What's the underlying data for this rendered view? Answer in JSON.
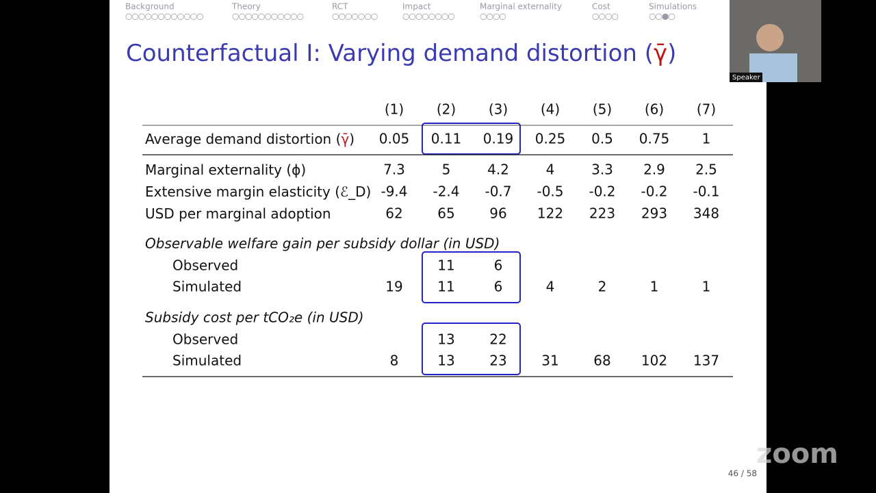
{
  "nav": [
    {
      "label": "Background",
      "dots": "○○○○○○○○○○○○"
    },
    {
      "label": "Theory",
      "dots": "○○○○○○○○○○○"
    },
    {
      "label": "RCT",
      "dots": "○○○○○○○"
    },
    {
      "label": "Impact",
      "dots": "○○○○○○○○"
    },
    {
      "label": "Marginal externality",
      "dots": "○○○○"
    },
    {
      "label": "Cost",
      "dots": "○○○○"
    },
    {
      "label": "Simulations",
      "dots": "○○●○"
    }
  ],
  "title": [
    "Counterfactual I: Varying demand distortion (",
    "γ̄",
    ")"
  ],
  "table": {
    "columns": [
      "(1)",
      "(2)",
      "(3)",
      "(4)",
      "(5)",
      "(6)",
      "(7)"
    ],
    "rows": [
      {
        "label": [
          "Average demand distortion (",
          "γ̄",
          ")"
        ],
        "cells": [
          "0.05",
          "0.11",
          "0.19",
          "0.25",
          "0.5",
          "0.75",
          "1"
        ]
      },
      {
        "label": [
          "Marginal externality (ϕ)"
        ],
        "cells": [
          "7.3",
          "5",
          "4.2",
          "4",
          "3.3",
          "2.9",
          "2.5"
        ]
      },
      {
        "label": [
          "Extensive margin elasticity (ℰ_D)"
        ],
        "cells": [
          "-9.4",
          "-2.4",
          "-0.7",
          "-0.5",
          "-0.2",
          "-0.2",
          "-0.1"
        ]
      },
      {
        "label": [
          "USD per marginal adoption"
        ],
        "cells": [
          "62",
          "65",
          "96",
          "122",
          "223",
          "293",
          "348"
        ]
      }
    ],
    "sections": [
      {
        "heading": "Observable welfare gain per subsidy dollar (in USD)",
        "rows": [
          {
            "label": "Observed",
            "cells": [
              null,
              "11",
              "6",
              null,
              null,
              null,
              null
            ]
          },
          {
            "label": "Simulated",
            "cells": [
              "19",
              "11",
              "6",
              "4",
              "2",
              "1",
              "1"
            ]
          }
        ]
      },
      {
        "heading": "Subsidy cost per tCO₂e (in USD)",
        "rows": [
          {
            "label": "Observed",
            "cells": [
              null,
              "13",
              "22",
              null,
              null,
              null,
              null
            ]
          },
          {
            "label": "Simulated",
            "cells": [
              "8",
              "13",
              "23",
              "31",
              "68",
              "102",
              "137"
            ]
          }
        ]
      }
    ]
  },
  "page_number": "46 / 58",
  "speaker_label": "Speaker",
  "watermark": "zoom"
}
